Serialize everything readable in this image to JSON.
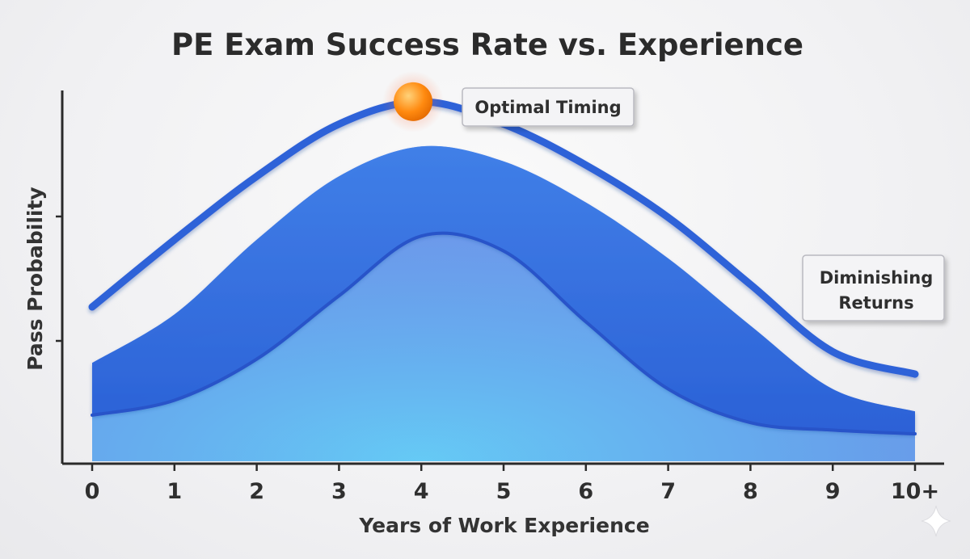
{
  "chart_data": {
    "type": "line",
    "title": "PE Exam Success Rate vs. Experience",
    "xlabel": "Years of Work Experience",
    "ylabel": "Pass Probability",
    "x": [
      "0",
      "1",
      "2",
      "3",
      "4",
      "5",
      "6",
      "7",
      "8",
      "9",
      "10+"
    ],
    "xlim": [
      0,
      10
    ],
    "ylim": [
      0,
      1
    ],
    "grid": false,
    "series": [
      {
        "values": [
          0.42,
          0.6,
          0.77,
          0.91,
          0.97,
          0.91,
          0.8,
          0.66,
          0.48,
          0.3,
          0.24
        ]
      }
    ],
    "band_upper": [
      0.27,
      0.4,
      0.6,
      0.77,
      0.85,
      0.81,
      0.7,
      0.55,
      0.37,
      0.2,
      0.14
    ],
    "band_lower": [
      0.13,
      0.17,
      0.28,
      0.45,
      0.61,
      0.57,
      0.38,
      0.2,
      0.11,
      0.09,
      0.08
    ],
    "highlight": {
      "x": 3.9,
      "value": 0.97,
      "color": "#ff8a10"
    },
    "annotations": [
      {
        "text": "Optimal Timing",
        "lines": [
          "Optimal Timing"
        ]
      },
      {
        "text": "Diminishing Returns",
        "lines": [
          "Diminishing",
          "Returns"
        ]
      }
    ],
    "colors": {
      "line": "#2f62d8",
      "band": "#3a78e4",
      "axis": "#2a2a2a"
    }
  }
}
